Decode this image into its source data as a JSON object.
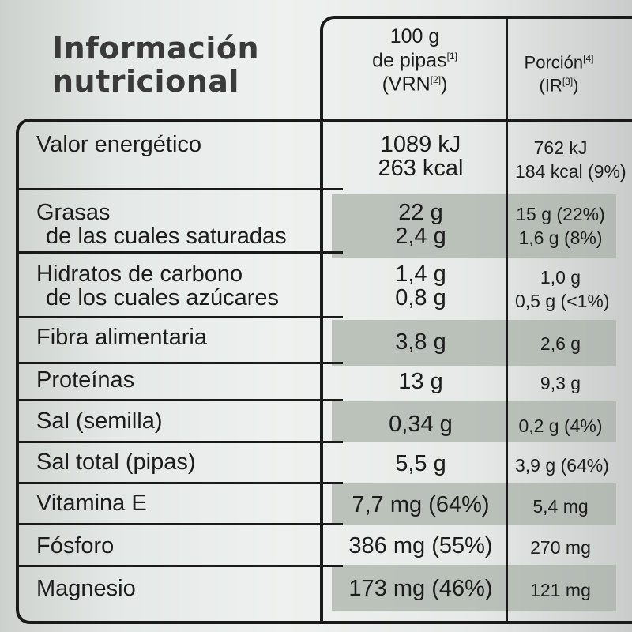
{
  "title": [
    "Información",
    "nutricional"
  ],
  "header": {
    "col2": [
      "100 g",
      "de pipas",
      "[1]",
      "(VRN",
      "[2]",
      ")"
    ],
    "col3": [
      "Porción",
      "[4]",
      "(IR",
      "[3]",
      ")"
    ]
  },
  "rows": [
    {
      "label": [
        "Valor energético"
      ],
      "per100": [
        "1089 kJ",
        "263 kcal"
      ],
      "portion": [
        "762 kJ",
        "184 kcal (9%)"
      ]
    },
    {
      "label": [
        "Grasas",
        "de las cuales saturadas"
      ],
      "per100": [
        "22 g",
        "2,4 g"
      ],
      "portion": [
        "15 g (22%)",
        "1,6 g (8%)"
      ]
    },
    {
      "label": [
        "Hidratos de carbono",
        "de los cuales azúcares"
      ],
      "per100": [
        "1,4 g",
        "0,8 g"
      ],
      "portion": [
        "1,0 g",
        "0,5 g (<1%)"
      ]
    },
    {
      "label": [
        "Fibra alimentaria"
      ],
      "per100": [
        "3,8 g"
      ],
      "portion": [
        "2,6 g"
      ]
    },
    {
      "label": [
        "Proteínas"
      ],
      "per100": [
        "13 g"
      ],
      "portion": [
        "9,3 g"
      ]
    },
    {
      "label": [
        "Sal (semilla)"
      ],
      "per100": [
        "0,34 g"
      ],
      "portion": [
        "0,2 g (4%)"
      ]
    },
    {
      "label": [
        "Sal total (pipas)"
      ],
      "per100": [
        "5,5 g"
      ],
      "portion": [
        "3,9 g (64%)"
      ]
    },
    {
      "label": [
        "Vitamina E"
      ],
      "per100": [
        "7,7 mg (64%)"
      ],
      "portion": [
        "5,4 mg"
      ]
    },
    {
      "label": [
        "Fósforo"
      ],
      "per100": [
        "386 mg (55%)"
      ],
      "portion": [
        "270 mg"
      ]
    },
    {
      "label": [
        "Magnesio"
      ],
      "per100": [
        "173 mg (46%)"
      ],
      "portion": [
        "121 mg"
      ]
    }
  ],
  "colors": {
    "band": "#a9b3aa",
    "ink": "#1a1a1a"
  }
}
